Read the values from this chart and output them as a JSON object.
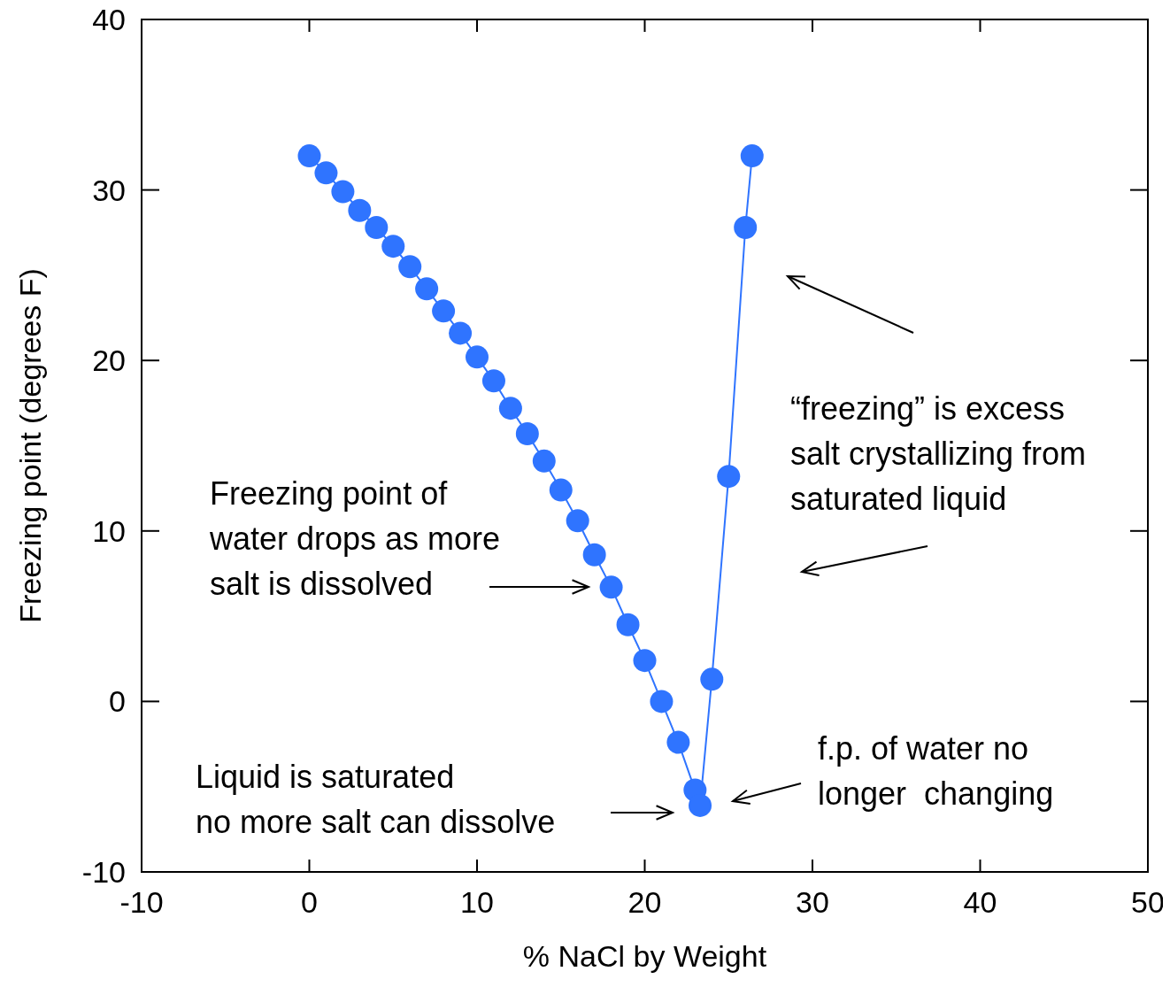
{
  "chart_data": {
    "type": "line",
    "xlabel": "% NaCl by Weight",
    "ylabel": "Freezing point (degrees F)",
    "x": [
      0,
      1,
      2,
      3,
      4,
      5,
      6,
      7,
      8,
      9,
      10,
      11,
      12,
      13,
      14,
      15,
      16,
      17,
      18,
      19,
      20,
      21,
      22,
      23,
      23.3,
      24,
      25,
      26,
      26.4
    ],
    "series": [
      {
        "color": "#2f74ff",
        "values": [
          32,
          31,
          29.9,
          28.8,
          27.8,
          26.7,
          25.5,
          24.2,
          22.9,
          21.6,
          20.2,
          18.8,
          17.2,
          15.7,
          14.1,
          12.4,
          10.6,
          8.6,
          6.7,
          4.5,
          2.4,
          0,
          -2.4,
          -5.2,
          -6.1,
          1.3,
          13.2,
          27.8,
          32
        ]
      }
    ],
    "xlim": [
      -10,
      50
    ],
    "xticks": [
      -10,
      0,
      10,
      20,
      30,
      40,
      50
    ],
    "ylim": [
      -10,
      40
    ],
    "yticks": [
      -10,
      0,
      10,
      20,
      30,
      40
    ],
    "grid": false,
    "marker": "circle",
    "line_style": "solid",
    "annotations": [
      "Freezing point of\nwater drops as more\nsalt is dissolved",
      "“freezing” is excess\nsalt crystallizing from\nsaturated liquid",
      "f.p. of water no\nlonger  changing",
      "Liquid is saturated\nno more salt can dissolve"
    ]
  }
}
